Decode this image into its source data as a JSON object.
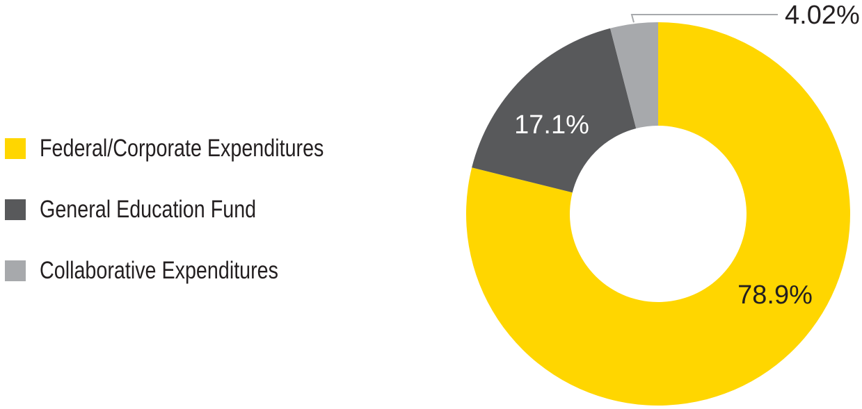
{
  "chart_data": {
    "type": "pie",
    "variant": "donut",
    "slices": [
      {
        "label": "Federal/Corporate Expenditures",
        "value": 78.9,
        "display": "78.9%",
        "color": "#ffd600"
      },
      {
        "label": "General Education Fund",
        "value": 17.1,
        "display": "17.1%",
        "color": "#58595b"
      },
      {
        "label": "Collaborative Expenditures",
        "value": 4.02,
        "display": "4.02%",
        "color": "#a7a9ac"
      }
    ],
    "legend_position": "left",
    "start_angle_deg": 0,
    "direction": "clockwise"
  },
  "colors": {
    "background": "#ffffff",
    "text": "#231f20",
    "leader_line": "#a7a9ac"
  }
}
